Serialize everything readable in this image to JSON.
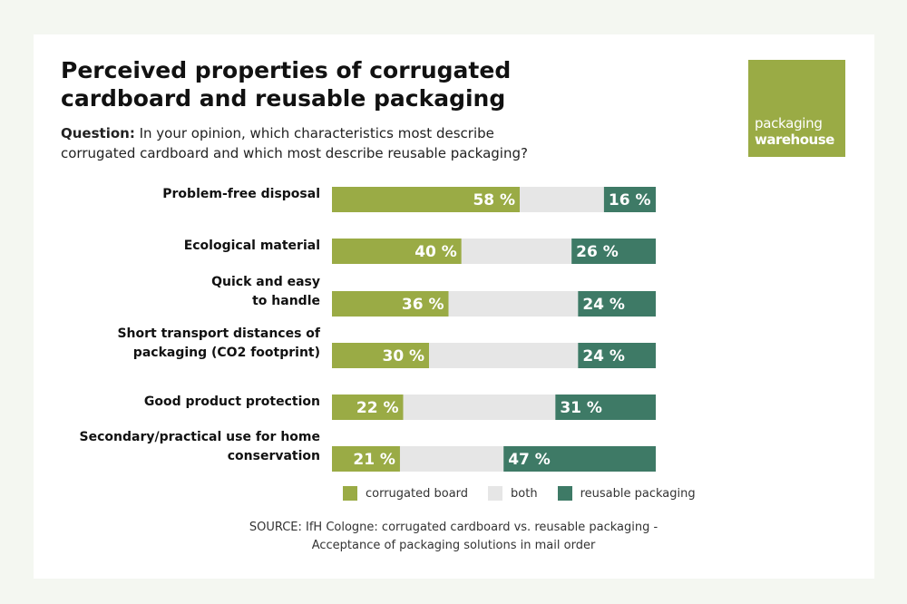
{
  "header": {
    "title": "Perceived properties of corrugated\n cardboard and reusable packaging",
    "question_label": "Question:",
    "question_text": " In your opinion, which characteristics most describe corrugated cardboard and which most describe reusable packaging?"
  },
  "logo": {
    "line1": "packaging",
    "line2": "warehouse",
    "color": "#9aab45"
  },
  "chart_data": {
    "type": "bar",
    "orientation": "horizontal",
    "stacked": true,
    "categories": [
      [
        "Problem-free disposal"
      ],
      [
        "Ecological material"
      ],
      [
        "Quick and easy",
        "to handle"
      ],
      [
        "Short transport distances of",
        "packaging (CO2 footprint)"
      ],
      [
        "Good product protection"
      ],
      [
        "Secondary/practical use for home",
        "conservation"
      ]
    ],
    "series": [
      {
        "name": "corrugated board",
        "color": "#9aab45",
        "values": [
          58,
          40,
          36,
          30,
          22,
          21
        ],
        "labels": [
          "58 %",
          "40 %",
          "36 %",
          "30 %",
          "22 %",
          "21 %"
        ]
      },
      {
        "name": "both",
        "color": "#e6e6e6",
        "values": [
          26,
          34,
          40,
          46,
          47,
          32
        ]
      },
      {
        "name": "reusable packaging",
        "color": "#3e7a66",
        "values": [
          16,
          26,
          24,
          24,
          31,
          47
        ],
        "labels": [
          "16 %",
          "26 %",
          "24 %",
          "24 %",
          "31 %",
          "47 %"
        ]
      }
    ],
    "xlim": [
      0,
      100
    ],
    "grid": false,
    "legend_position": "bottom"
  },
  "source": {
    "line1": "SOURCE: IfH Cologne: corrugated cardboard vs. reusable packaging -",
    "line2": "Acceptance of packaging solutions in mail order"
  }
}
